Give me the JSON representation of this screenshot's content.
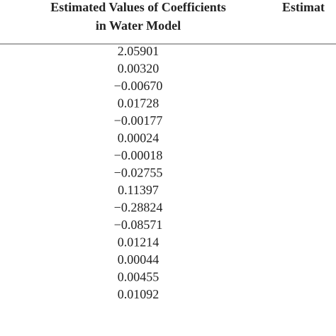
{
  "table": {
    "header": [
      [
        "Estimated Values of Coefficients",
        "in Water Model"
      ],
      [
        "Estimat"
      ]
    ],
    "rows": [
      "2.05901",
      "0.00320",
      "−0.00670",
      "0.01728",
      "−0.00177",
      "0.00024",
      "−0.00018",
      "−0.02755",
      "0.11397",
      "−0.28824",
      "−0.08571",
      "0.01214",
      "0.00044",
      "0.00455",
      "0.01092"
    ]
  }
}
